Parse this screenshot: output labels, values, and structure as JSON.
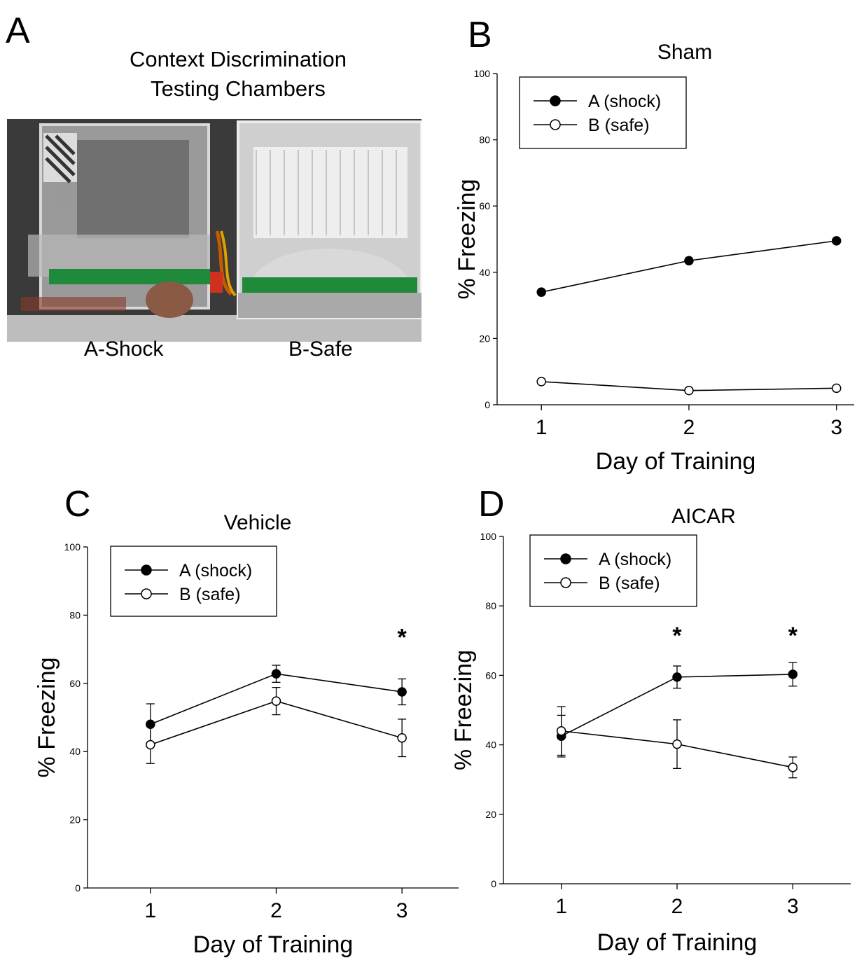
{
  "panel_a": {
    "letter": "A",
    "title_line1": "Context Discrimination",
    "title_line2": "Testing Chambers",
    "label_left": "A-Shock",
    "label_right": "B-Safe"
  },
  "chart_data": [
    {
      "panel": "B",
      "type": "line",
      "title": "Sham",
      "xlabel": "Day of Training",
      "ylabel": "% Freezing",
      "x": [
        1,
        2,
        3
      ],
      "xlim": [
        0.7,
        3.12
      ],
      "ylim": [
        0,
        100
      ],
      "yticks": [
        0,
        20,
        40,
        60,
        80,
        100
      ],
      "legend_position": "top-left",
      "series": [
        {
          "name": "A (shock)",
          "marker": "filled",
          "values": [
            34,
            43.5,
            49.5
          ],
          "err": [
            0,
            0,
            0
          ]
        },
        {
          "name": "B (safe)",
          "marker": "open",
          "values": [
            7,
            4.3,
            5
          ],
          "err": [
            0,
            0,
            0
          ]
        }
      ],
      "significance": []
    },
    {
      "panel": "C",
      "type": "line",
      "title": "Vehicle",
      "xlabel": "Day of Training",
      "ylabel": "% Freezing",
      "x": [
        1,
        2,
        3
      ],
      "xlim": [
        0.5,
        3.45
      ],
      "ylim": [
        0,
        100
      ],
      "yticks": [
        0,
        20,
        40,
        60,
        80,
        100
      ],
      "legend_position": "top-left",
      "series": [
        {
          "name": "A (shock)",
          "marker": "filled",
          "values": [
            48,
            62.8,
            57.5
          ],
          "err": [
            6,
            2.5,
            3.8
          ]
        },
        {
          "name": "B (safe)",
          "marker": "open",
          "values": [
            42,
            54.8,
            44
          ],
          "err": [
            5.5,
            4,
            5.5
          ]
        }
      ],
      "significance": [
        {
          "x": 3,
          "y": 74,
          "label": "*"
        }
      ]
    },
    {
      "panel": "D",
      "type": "line",
      "title": "AICAR",
      "xlabel": "Day of Training",
      "ylabel": "% Freezing",
      "x": [
        1,
        2,
        3
      ],
      "xlim": [
        0.5,
        3.5
      ],
      "ylim": [
        0,
        100
      ],
      "yticks": [
        0,
        20,
        40,
        60,
        80,
        100
      ],
      "legend_position": "top-left",
      "series": [
        {
          "name": "A (shock)",
          "marker": "filled",
          "values": [
            42.5,
            59.5,
            60.3
          ],
          "err": [
            6,
            3.2,
            3.4
          ]
        },
        {
          "name": "B (safe)",
          "marker": "open",
          "values": [
            44,
            40.2,
            33.5
          ],
          "err": [
            7,
            7,
            3
          ]
        }
      ],
      "significance": [
        {
          "x": 2,
          "y": 72,
          "label": "*"
        },
        {
          "x": 3,
          "y": 72,
          "label": "*"
        }
      ]
    }
  ]
}
